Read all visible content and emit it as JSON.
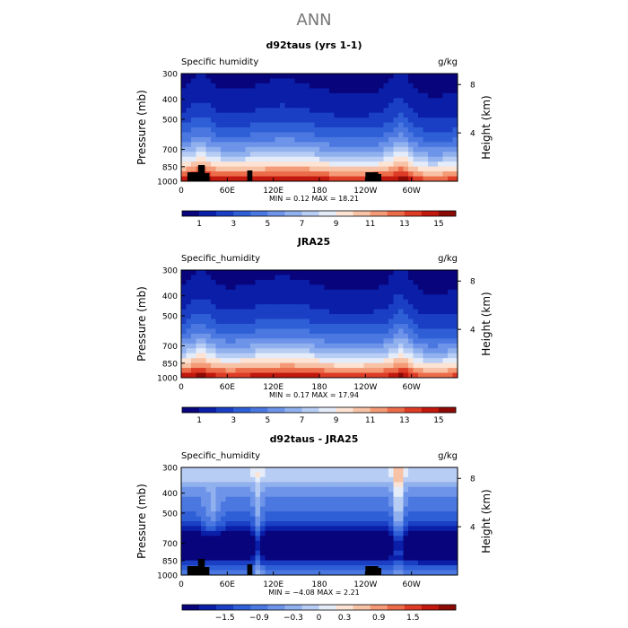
{
  "figure": {
    "title": "ANN"
  },
  "chart_data": [
    {
      "type": "heatmap",
      "title": "d92taus (yrs 1-1)",
      "left_label": "Specific humidity",
      "units": "g/kg",
      "ylabel": "Pressure (mb)",
      "ylabel_right": "Height (km)",
      "y_ticks": [
        "300",
        "400",
        "500",
        "700",
        "850",
        "1000"
      ],
      "y_right_ticks": [
        "8",
        "4"
      ],
      "x_ticks": [
        "0",
        "60E",
        "120E",
        "180",
        "120W",
        "60W"
      ],
      "stats": "MIN =    0.12   MAX =   18.21",
      "colorbar": {
        "labels": [
          "1",
          "3",
          "5",
          "7",
          "9",
          "11",
          "13",
          "15"
        ],
        "levels": 16,
        "range": [
          0,
          16
        ]
      },
      "field": {
        "kind": "absolute",
        "lon_range": [
          0,
          360
        ],
        "surface_specific_humidity_max_g_per_kg": 18.21,
        "surface_specific_humidity_min_g_per_kg": 0.12
      },
      "terrain": true
    },
    {
      "type": "heatmap",
      "title": "JRA25",
      "left_label": "Specific_humidity",
      "units": "g/kg",
      "ylabel": "Pressure (mb)",
      "ylabel_right": "Height (km)",
      "y_ticks": [
        "300",
        "400",
        "500",
        "700",
        "850",
        "1000"
      ],
      "y_right_ticks": [
        "8",
        "4"
      ],
      "x_ticks": [
        "0",
        "60E",
        "120E",
        "180",
        "120W",
        "60W"
      ],
      "stats": "MIN =    0.17   MAX =   17.94",
      "colorbar": {
        "labels": [
          "1",
          "3",
          "5",
          "7",
          "9",
          "11",
          "13",
          "15"
        ],
        "levels": 16,
        "range": [
          0,
          16
        ]
      },
      "field": {
        "kind": "absolute",
        "lon_range": [
          0,
          360
        ],
        "surface_specific_humidity_max_g_per_kg": 17.94,
        "surface_specific_humidity_min_g_per_kg": 0.17
      },
      "terrain": false
    },
    {
      "type": "heatmap",
      "title": "d92taus - JRA25",
      "left_label": "Specific_humidity",
      "units": "g/kg",
      "ylabel": "Pressure (mb)",
      "ylabel_right": "Height (km)",
      "y_ticks": [
        "300",
        "400",
        "500",
        "700",
        "850",
        "1000"
      ],
      "y_right_ticks": [
        "8",
        "4"
      ],
      "x_ticks": [
        "0",
        "60E",
        "120E",
        "180",
        "120W",
        "60W"
      ],
      "stats": "MIN =   −4.08   MAX =    2.21",
      "colorbar": {
        "labels": [
          "−1.5",
          "−0.9",
          "−0.3",
          "0",
          "0.3",
          "0.9",
          "1.5"
        ],
        "levels": 16,
        "range": [
          -2.0,
          2.0
        ]
      },
      "field": {
        "kind": "difference",
        "lon_range": [
          0,
          360
        ],
        "min": -4.08,
        "max": 2.21
      },
      "terrain": true
    }
  ],
  "colors": {
    "palette": [
      "#08047c",
      "#0a1ea8",
      "#1a3fc4",
      "#2f5fd6",
      "#4a78e0",
      "#6d94e8",
      "#90b0ee",
      "#b8cdf4",
      "#e4ecfa",
      "#fce3d4",
      "#f8c2a6",
      "#f49a76",
      "#ec6c4a",
      "#de3c26",
      "#c2180e",
      "#8e0a05"
    ]
  }
}
